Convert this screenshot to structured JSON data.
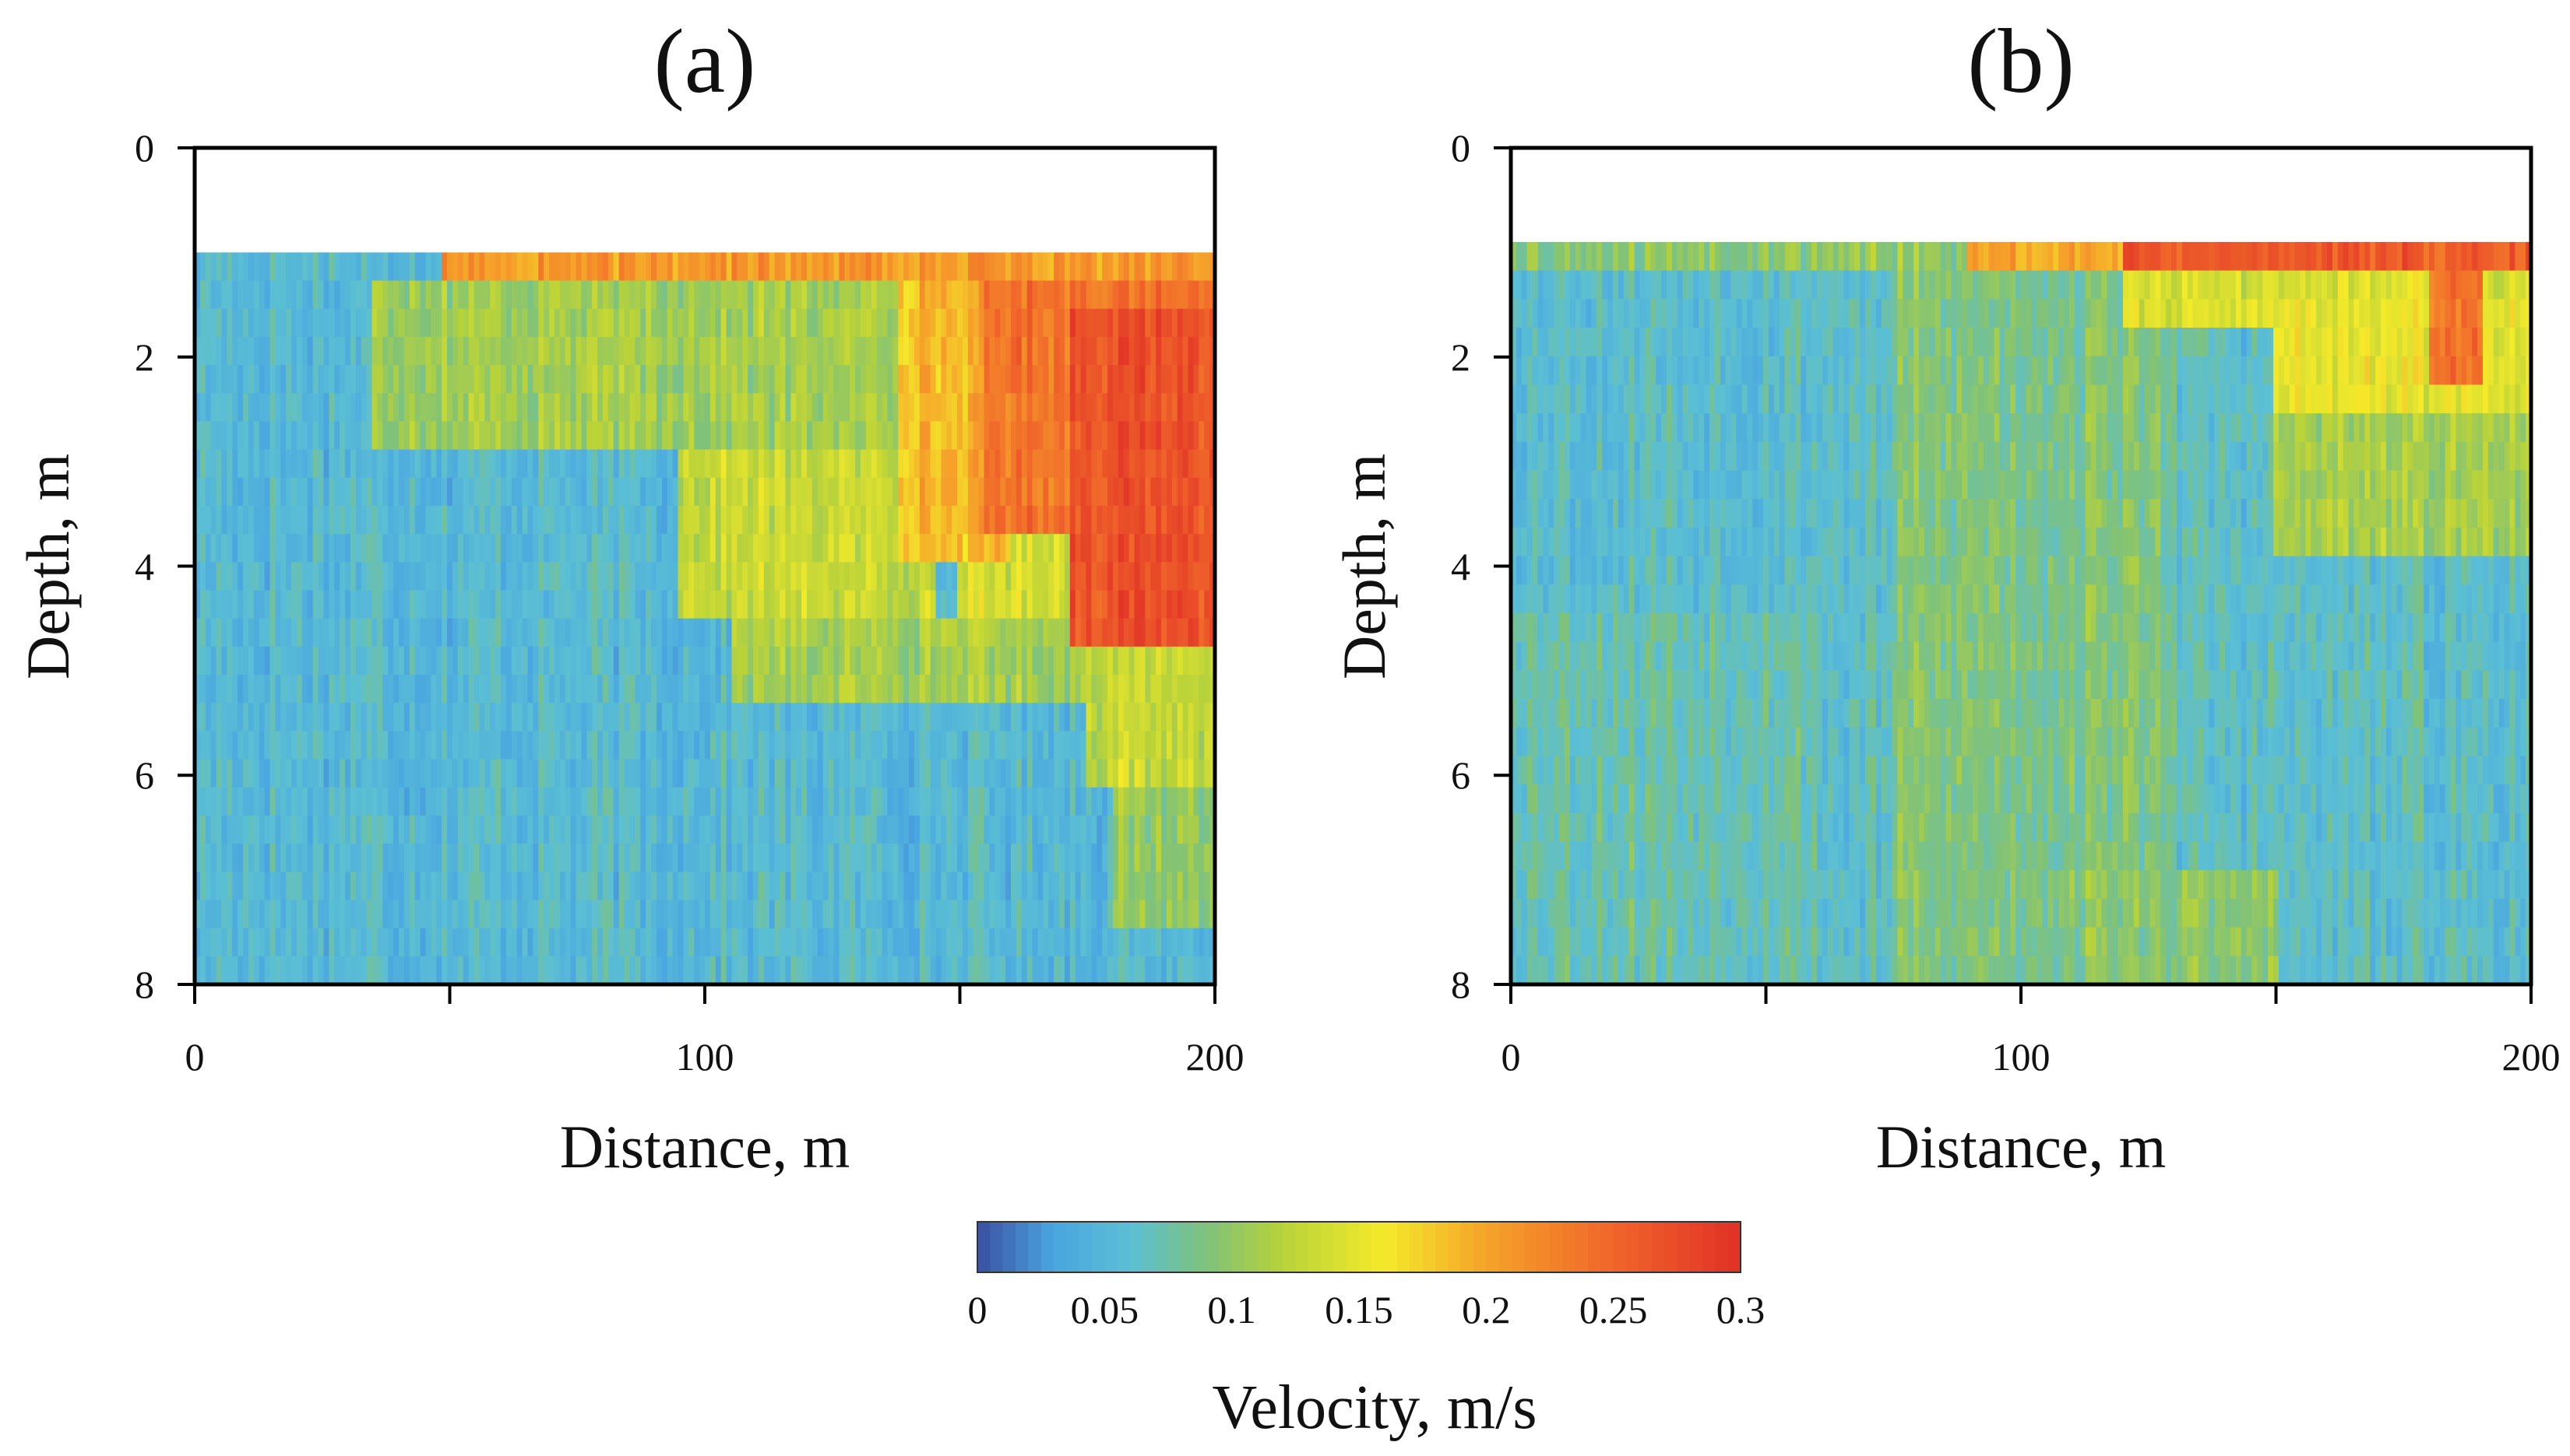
{
  "colorscale": {
    "label": "Velocity, m/s",
    "vmin": 0,
    "vmax": 0.3,
    "ticks": [
      "0",
      "0.05",
      "0.1",
      "0.15",
      "0.2",
      "0.25",
      "0.3"
    ],
    "stops": [
      {
        "v": 0.0,
        "color": "#3a4fa2"
      },
      {
        "v": 0.03,
        "color": "#4aa6e0"
      },
      {
        "v": 0.06,
        "color": "#5bbfd4"
      },
      {
        "v": 0.09,
        "color": "#7fc27a"
      },
      {
        "v": 0.12,
        "color": "#b8d23a"
      },
      {
        "v": 0.16,
        "color": "#f4ea2a"
      },
      {
        "v": 0.2,
        "color": "#f5a32a"
      },
      {
        "v": 0.25,
        "color": "#f0652a"
      },
      {
        "v": 0.3,
        "color": "#e03127"
      }
    ]
  },
  "chart_data": [
    {
      "type": "heatmap",
      "panel": "a",
      "title": "(a)",
      "xlabel": "Distance, m",
      "ylabel": "Depth, m",
      "xlim": [
        0,
        200
      ],
      "ylim": [
        8,
        0
      ],
      "xticks": [
        0,
        100,
        200
      ],
      "xtick_labels": [
        "0",
        "100",
        "200"
      ],
      "yticks": [
        0,
        2,
        4,
        6,
        8
      ],
      "ytick_labels": [
        "0",
        "2",
        "4",
        "6",
        "8"
      ],
      "data_depth_range": [
        1.0,
        8.0
      ],
      "seed": 17,
      "base_velocity": 0.055,
      "anomalies": [
        {
          "x_from": 48,
          "x_to": 200,
          "z_from": 1.0,
          "z_to": 1.3,
          "v": 0.21
        },
        {
          "x_from": 35,
          "x_to": 140,
          "z_from": 1.3,
          "z_to": 3.0,
          "v": 0.11
        },
        {
          "x_from": 95,
          "x_to": 145,
          "z_from": 3.0,
          "z_to": 4.4,
          "v": 0.13
        },
        {
          "x_from": 105,
          "x_to": 190,
          "z_from": 4.4,
          "z_to": 5.4,
          "v": 0.11
        },
        {
          "x_from": 138,
          "x_to": 160,
          "z_from": 1.3,
          "z_to": 4.0,
          "v": 0.19
        },
        {
          "x_from": 155,
          "x_to": 200,
          "z_from": 1.3,
          "z_to": 3.8,
          "v": 0.24
        },
        {
          "x_from": 172,
          "x_to": 200,
          "z_from": 1.5,
          "z_to": 4.7,
          "v": 0.27
        },
        {
          "x_from": 150,
          "x_to": 175,
          "z_from": 3.8,
          "z_to": 4.4,
          "v": 0.14
        },
        {
          "x_from": 175,
          "x_to": 200,
          "z_from": 4.7,
          "z_to": 6.0,
          "v": 0.13
        },
        {
          "x_from": 180,
          "x_to": 200,
          "z_from": 6.0,
          "z_to": 7.4,
          "v": 0.1
        }
      ]
    },
    {
      "type": "heatmap",
      "panel": "b",
      "title": "(b)",
      "xlabel": "Distance, m",
      "ylabel": "Depth, m",
      "xlim": [
        0,
        200
      ],
      "ylim": [
        8,
        0
      ],
      "xticks": [
        0,
        100,
        200
      ],
      "xtick_labels": [
        "0",
        "100",
        "200"
      ],
      "yticks": [
        0,
        2,
        4,
        6,
        8
      ],
      "ytick_labels": [
        "0",
        "2",
        "4",
        "6",
        "8"
      ],
      "data_depth_range": [
        0.9,
        8.0
      ],
      "seed": 53,
      "base_velocity": 0.062,
      "anomalies": [
        {
          "x_from": 0,
          "x_to": 90,
          "z_from": 0.9,
          "z_to": 1.3,
          "v": 0.1
        },
        {
          "x_from": 90,
          "x_to": 200,
          "z_from": 0.9,
          "z_to": 1.15,
          "v": 0.2
        },
        {
          "x_from": 120,
          "x_to": 200,
          "z_from": 0.9,
          "z_to": 1.1,
          "v": 0.26
        },
        {
          "x_from": 120,
          "x_to": 200,
          "z_from": 1.15,
          "z_to": 1.8,
          "v": 0.14
        },
        {
          "x_from": 150,
          "x_to": 200,
          "z_from": 1.5,
          "z_to": 2.6,
          "v": 0.15
        },
        {
          "x_from": 180,
          "x_to": 190,
          "z_from": 1.1,
          "z_to": 2.2,
          "v": 0.24
        },
        {
          "x_from": 150,
          "x_to": 200,
          "z_from": 2.6,
          "z_to": 4.0,
          "v": 0.11
        },
        {
          "x_from": 75,
          "x_to": 130,
          "z_from": 1.3,
          "z_to": 8.0,
          "v": 0.09
        },
        {
          "x_from": 0,
          "x_to": 60,
          "z_from": 4.5,
          "z_to": 8.0,
          "v": 0.075
        },
        {
          "x_from": 110,
          "x_to": 150,
          "z_from": 6.8,
          "z_to": 8.0,
          "v": 0.095
        }
      ]
    }
  ]
}
